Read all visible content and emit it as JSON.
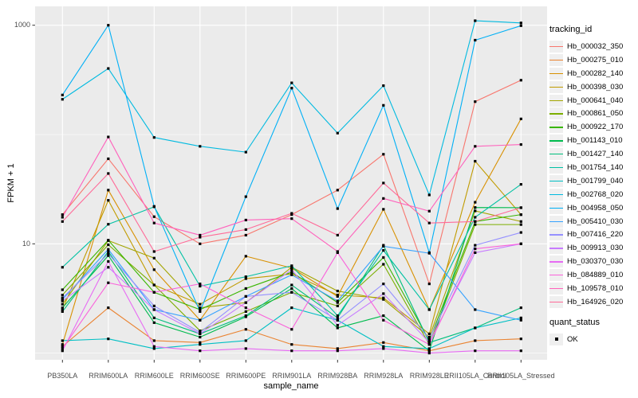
{
  "axes": {
    "x_title": "sample_name",
    "y_title": "FPKM + 1",
    "y_tick_labels": [
      "1000",
      "10"
    ]
  },
  "legend": {
    "tracking_title": "tracking_id",
    "quant_title": "quant_status",
    "quant_ok_label": "OK"
  },
  "chart_data": {
    "type": "line",
    "xlabel": "sample_name",
    "ylabel": "FPKM + 1",
    "yscale": "log10",
    "y_major_ticks": [
      1000,
      10
    ],
    "y_minor_gridlines": [
      100,
      1
    ],
    "ylim": [
      0.85,
      1300
    ],
    "grid": "ggplot-grey-panel-white-gridlines",
    "legend_position": "right",
    "point_marker": {
      "shape": "square",
      "color": "#000000",
      "status_label": "OK"
    },
    "categories": [
      "PB350LA",
      "RRIM600LA",
      "RRIM600LE",
      "RRIM600SE",
      "RRIM600PE",
      "RRIM901LA",
      "RRIM928BA",
      "RRIM928LA",
      "RRIM928LE",
      "RRII105LA_Control",
      "RRII105LA_Stressed"
    ],
    "series": [
      {
        "name": "Hb_000032_350",
        "color": "#F8766D",
        "values": [
          18.5,
          60,
          17.7,
          10,
          12,
          18.5,
          31,
          66,
          4.3,
          200,
          314
        ]
      },
      {
        "name": "Hb_000275_010",
        "color": "#EA8331",
        "values": [
          1.15,
          2.6,
          1.3,
          1.25,
          1.65,
          1.2,
          1.1,
          1.25,
          1.05,
          1.3,
          1.35
        ]
      },
      {
        "name": "Hb_000282_140",
        "color": "#D89000",
        "values": [
          1.2,
          31,
          5.8,
          2.0,
          7.7,
          6.0,
          3.3,
          20.7,
          2.5,
          24,
          139
        ]
      },
      {
        "name": "Hb_000398_030",
        "color": "#C09B00",
        "values": [
          2.5,
          25,
          4.2,
          2.8,
          4.8,
          5.3,
          3.4,
          3.2,
          1.5,
          57,
          18.5
        ]
      },
      {
        "name": "Hb_000641_040",
        "color": "#A3A500",
        "values": [
          2.8,
          10.7,
          7.4,
          2.6,
          2.9,
          6.1,
          3.7,
          3.1,
          1.4,
          20,
          16
        ]
      },
      {
        "name": "Hb_000861_050",
        "color": "#7CAE00",
        "values": [
          3.4,
          9.8,
          4.2,
          1.6,
          2.4,
          3.6,
          2.7,
          6.5,
          1.2,
          15,
          15
        ]
      },
      {
        "name": "Hb_000922_170",
        "color": "#39B600",
        "values": [
          3.8,
          10.8,
          3.6,
          2.5,
          3.9,
          5.5,
          2.9,
          7.5,
          1.3,
          16,
          18.5
        ]
      },
      {
        "name": "Hb_001143_010",
        "color": "#00BB4E",
        "values": [
          2.6,
          7.8,
          1.9,
          1.4,
          2.15,
          3.9,
          1.7,
          2.2,
          1.05,
          21.5,
          21.4
        ]
      },
      {
        "name": "Hb_001427_140",
        "color": "#00BF7D",
        "values": [
          2.4,
          8.5,
          2.1,
          1.5,
          2.2,
          4.2,
          2.1,
          9.7,
          1.25,
          1.7,
          2.6
        ]
      },
      {
        "name": "Hb_001754_140",
        "color": "#00C1A3",
        "values": [
          6.1,
          15.1,
          21.8,
          4.1,
          5.0,
          6.3,
          2.2,
          8.7,
          2.5,
          17.5,
          35
        ]
      },
      {
        "name": "Hb_001799_040",
        "color": "#00BFC4",
        "values": [
          1.3,
          1.35,
          1.1,
          1.2,
          1.3,
          2.6,
          2.0,
          1.15,
          1.1,
          1.7,
          2.1
        ]
      },
      {
        "name": "Hb_002768_020",
        "color": "#00BAE0",
        "values": [
          210,
          402,
          94,
          78,
          69,
          297,
          103,
          280,
          28,
          1100,
          1050
        ]
      },
      {
        "name": "Hb_004958_050",
        "color": "#00B0F6",
        "values": [
          230,
          1000,
          22,
          2.4,
          27,
          266,
          21,
          185,
          8.3,
          730,
          990
        ]
      },
      {
        "name": "Hb_005410_030",
        "color": "#35A2FF",
        "values": [
          3.1,
          8.9,
          2.5,
          2.0,
          3.3,
          5.2,
          3.0,
          9.5,
          8.2,
          2.5,
          2.0
        ]
      },
      {
        "name": "Hb_007416_220",
        "color": "#9590FF",
        "values": [
          3.2,
          8.1,
          2.7,
          1.55,
          3.3,
          3.6,
          2.0,
          4.3,
          1.35,
          9.7,
          12.7
        ]
      },
      {
        "name": "Hb_009913_030",
        "color": "#C77CFF",
        "values": [
          3.0,
          6.1,
          2.5,
          1.5,
          2.9,
          5.8,
          1.8,
          3.5,
          1.25,
          8.3,
          10.0
        ]
      },
      {
        "name": "Hb_030370_030",
        "color": "#E76BF3",
        "values": [
          1.05,
          6.9,
          1.15,
          1.05,
          1.1,
          1.05,
          1.05,
          1.1,
          1.0,
          1.05,
          1.05
        ]
      },
      {
        "name": "Hb_084889_010",
        "color": "#FA62DB",
        "values": [
          1.1,
          4.4,
          3.6,
          4.3,
          2.6,
          1.65,
          8.3,
          2.0,
          1.2,
          9.0,
          10.0
        ]
      },
      {
        "name": "Hb_109578_010",
        "color": "#FF62BC",
        "values": [
          17.5,
          95,
          15.5,
          12,
          16.5,
          17,
          8.5,
          26,
          19.9,
          78,
          81
        ]
      },
      {
        "name": "Hb_164926_020",
        "color": "#FF6A98",
        "values": [
          16,
          44,
          8.5,
          11.5,
          13.5,
          19,
          12,
          36,
          15.5,
          16,
          21.4
        ]
      }
    ],
    "panel_background": "#EBEBEB",
    "gridline_color": "#FFFFFF",
    "axis_text_color": "#4D4D4D"
  }
}
